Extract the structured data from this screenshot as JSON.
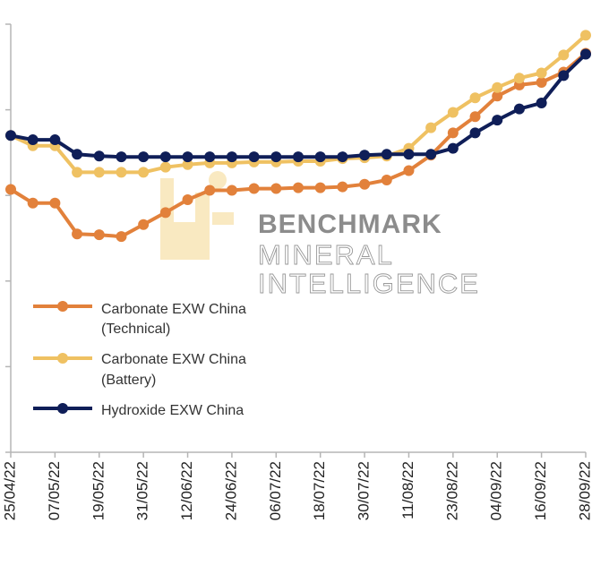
{
  "watermark": {
    "line1": "BENCHMARK",
    "line2": "MINERAL",
    "line3": "INTELLIGENCE"
  },
  "chart_data": {
    "type": "line",
    "x": [
      "25/04/22",
      "01/05/22",
      "07/05/22",
      "13/05/22",
      "19/05/22",
      "25/05/22",
      "31/05/22",
      "06/06/22",
      "12/06/22",
      "18/06/22",
      "24/06/22",
      "30/06/22",
      "06/07/22",
      "12/07/22",
      "18/07/22",
      "24/07/22",
      "30/07/22",
      "05/08/22",
      "11/08/22",
      "17/08/22",
      "23/08/22",
      "29/08/22",
      "04/09/22",
      "10/09/22",
      "16/09/22",
      "22/09/22",
      "28/09/22"
    ],
    "x_tick_labels": [
      "25/04/22",
      "07/05/22",
      "19/05/22",
      "31/05/22",
      "12/06/22",
      "24/06/22",
      "06/07/22",
      "18/07/22",
      "30/07/22",
      "11/08/22",
      "23/08/22",
      "04/09/22",
      "16/09/22",
      "28/09/22"
    ],
    "ylim": [
      0,
      5
    ],
    "y_ticks": 5,
    "grid": false,
    "legend_position": "left-middle",
    "series": [
      {
        "name": "Carbonate EXW China (Technical)",
        "color": "#E2813B",
        "values": [
          3.07,
          2.91,
          2.91,
          2.55,
          2.54,
          2.52,
          2.66,
          2.8,
          2.95,
          3.06,
          3.06,
          3.08,
          3.08,
          3.09,
          3.09,
          3.1,
          3.13,
          3.18,
          3.29,
          3.47,
          3.73,
          3.92,
          4.16,
          4.29,
          4.32,
          4.44,
          4.66
        ]
      },
      {
        "name": "Carbonate EXW China (Battery)",
        "color": "#EFC162",
        "values": [
          3.7,
          3.58,
          3.58,
          3.27,
          3.27,
          3.27,
          3.27,
          3.33,
          3.36,
          3.38,
          3.38,
          3.39,
          3.39,
          3.4,
          3.4,
          3.43,
          3.44,
          3.46,
          3.55,
          3.79,
          3.97,
          4.14,
          4.26,
          4.37,
          4.43,
          4.64,
          4.87
        ]
      },
      {
        "name": "Hydroxide EXW China",
        "color": "#0F1E58",
        "values": [
          3.7,
          3.65,
          3.65,
          3.48,
          3.46,
          3.45,
          3.45,
          3.45,
          3.45,
          3.45,
          3.45,
          3.45,
          3.45,
          3.45,
          3.45,
          3.45,
          3.47,
          3.48,
          3.48,
          3.48,
          3.55,
          3.73,
          3.88,
          4.01,
          4.08,
          4.4,
          4.65
        ]
      }
    ]
  },
  "legend": [
    {
      "line1": "Carbonate EXW China",
      "line2": "(Technical)"
    },
    {
      "line1": "Carbonate EXW China",
      "line2": "(Battery)"
    },
    {
      "line1": "Hydroxide EXW China",
      "line2": ""
    }
  ]
}
